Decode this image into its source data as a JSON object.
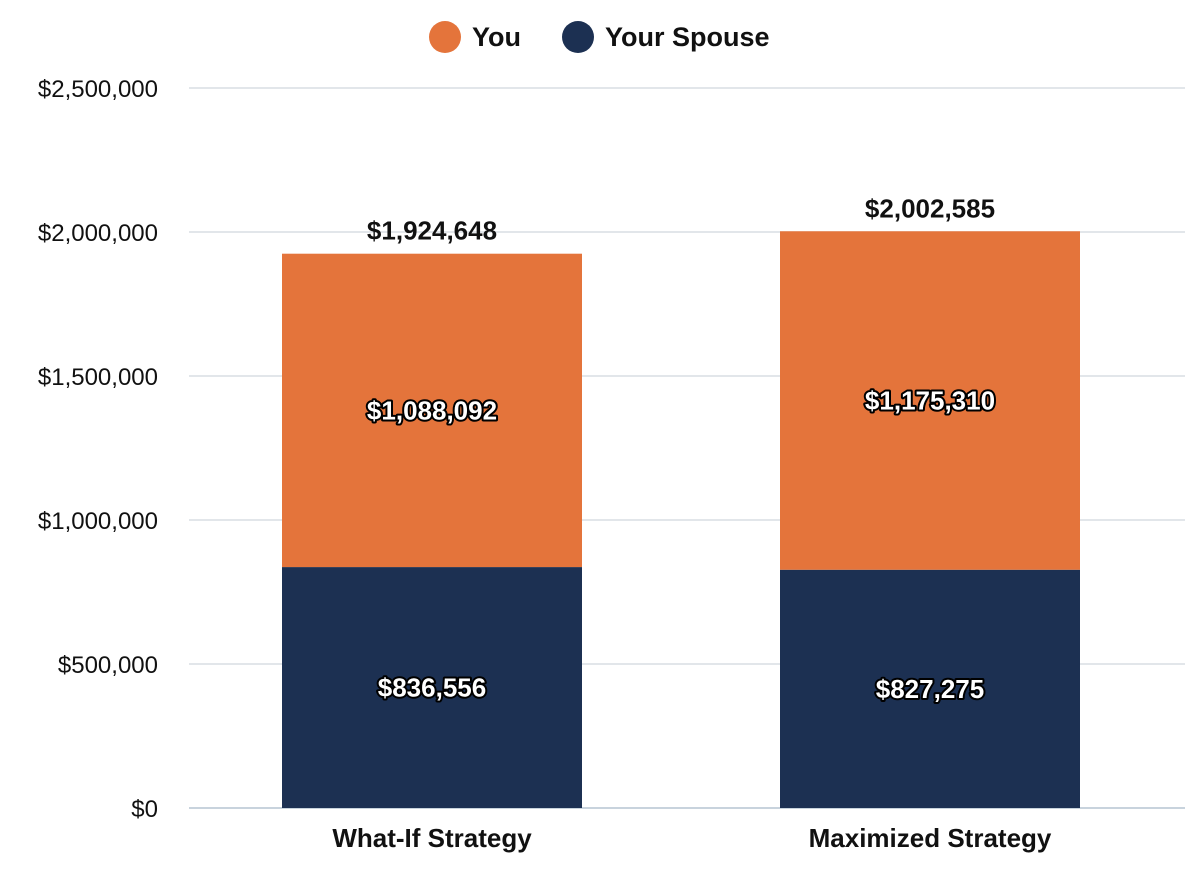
{
  "chart_data": {
    "type": "bar",
    "stacked": true,
    "title": "",
    "xlabel": "",
    "ylabel": "",
    "categories": [
      "What-If Strategy",
      "Maximized Strategy"
    ],
    "series": [
      {
        "name": "Your Spouse",
        "values": [
          836556,
          827275
        ],
        "labels": [
          "$836,556",
          "$827,275"
        ],
        "color": "#1c3052"
      },
      {
        "name": "You",
        "values": [
          1088092,
          1175310
        ],
        "labels": [
          "$1,088,092",
          "$1,175,310"
        ],
        "color": "#e4743b"
      }
    ],
    "totals": [
      1924648,
      2002585
    ],
    "total_labels": [
      "$1,924,648",
      "$2,002,585"
    ],
    "ylim": [
      0,
      2500000
    ],
    "y_ticks": [
      0,
      500000,
      1000000,
      1500000,
      2000000,
      2500000
    ],
    "y_tick_labels": [
      "$0",
      "$500,000",
      "$1,000,000",
      "$1,500,000",
      "$2,000,000",
      "$2,500,000"
    ],
    "grid": true,
    "legend": {
      "position": "top-center",
      "items": [
        {
          "name": "You",
          "color": "#e4743b"
        },
        {
          "name": "Your Spouse",
          "color": "#1c3052"
        }
      ]
    }
  }
}
